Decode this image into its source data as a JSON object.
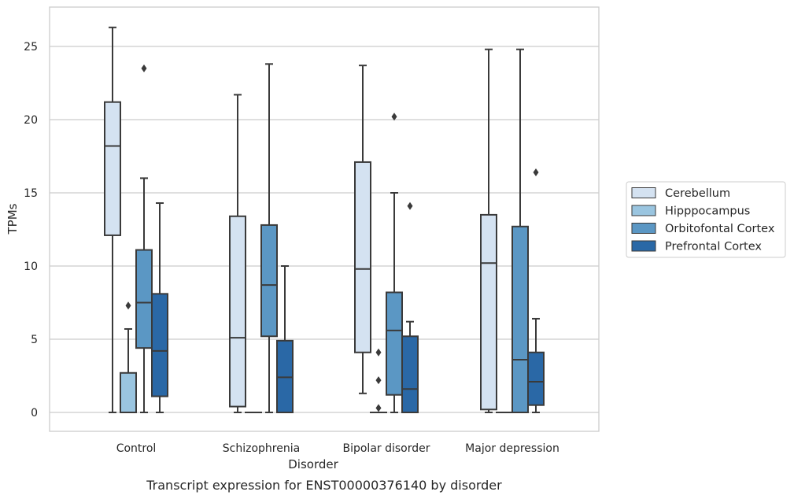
{
  "caption": "Transcript expression for ENST00000376140 by disorder",
  "chart_data": {
    "type": "box",
    "xlabel": "Disorder",
    "ylabel": "TPMs",
    "ylim": [
      -1.3,
      27.6
    ],
    "yticks": [
      0,
      5,
      10,
      15,
      20,
      25
    ],
    "grid": "horizontal",
    "legend_position": "right",
    "categories": [
      "Control",
      "Schizophrenia",
      "Bipolar disorder",
      "Major depression"
    ],
    "series": [
      {
        "name": "Cerebellum",
        "color": "#d4e2f1",
        "boxes": [
          {
            "whisker_low": 0,
            "q1": 12.1,
            "median": 18.2,
            "q3": 21.2,
            "whisker_high": 26.3,
            "outliers": []
          },
          {
            "whisker_low": 0,
            "q1": 0.4,
            "median": 5.1,
            "q3": 13.4,
            "whisker_high": 21.7,
            "outliers": []
          },
          {
            "whisker_low": 1.3,
            "q1": 4.1,
            "median": 9.8,
            "q3": 17.1,
            "whisker_high": 23.7,
            "outliers": []
          },
          {
            "whisker_low": 0,
            "q1": 0.2,
            "median": 10.2,
            "q3": 13.5,
            "whisker_high": 24.8,
            "outliers": []
          }
        ]
      },
      {
        "name": "Hipppocampus",
        "color": "#9ac5e0",
        "boxes": [
          {
            "whisker_low": 0,
            "q1": 0,
            "median": 0,
            "q3": 2.7,
            "whisker_high": 5.7,
            "outliers": [
              7.3
            ]
          },
          {
            "whisker_low": 0,
            "q1": 0,
            "median": 0,
            "q3": 0,
            "whisker_high": 0,
            "outliers": []
          },
          {
            "whisker_low": 0,
            "q1": 0,
            "median": 0,
            "q3": 0,
            "whisker_high": 0,
            "outliers": [
              4.1,
              2.2,
              0.3
            ]
          },
          {
            "whisker_low": 0,
            "q1": 0,
            "median": 0,
            "q3": 0,
            "whisker_high": 0,
            "outliers": []
          }
        ]
      },
      {
        "name": "Orbitofontal Cortex",
        "color": "#5b97c4",
        "boxes": [
          {
            "whisker_low": 0,
            "q1": 4.4,
            "median": 7.5,
            "q3": 11.1,
            "whisker_high": 16.0,
            "outliers": [
              23.5
            ]
          },
          {
            "whisker_low": 0,
            "q1": 5.2,
            "median": 8.7,
            "q3": 12.8,
            "whisker_high": 23.8,
            "outliers": []
          },
          {
            "whisker_low": 0,
            "q1": 1.2,
            "median": 5.6,
            "q3": 8.2,
            "whisker_high": 15.0,
            "outliers": [
              20.2
            ]
          },
          {
            "whisker_low": 0,
            "q1": 0,
            "median": 3.6,
            "q3": 12.7,
            "whisker_high": 24.8,
            "outliers": []
          }
        ]
      },
      {
        "name": "Prefrontal Cortex",
        "color": "#2a68a6",
        "boxes": [
          {
            "whisker_low": 0,
            "q1": 1.1,
            "median": 4.2,
            "q3": 8.1,
            "whisker_high": 14.3,
            "outliers": []
          },
          {
            "whisker_low": 0,
            "q1": 0,
            "median": 2.4,
            "q3": 4.9,
            "whisker_high": 10.0,
            "outliers": []
          },
          {
            "whisker_low": 0,
            "q1": 0,
            "median": 1.6,
            "q3": 5.2,
            "whisker_high": 6.2,
            "outliers": [
              14.1
            ]
          },
          {
            "whisker_low": 0,
            "q1": 0.5,
            "median": 2.1,
            "q3": 4.1,
            "whisker_high": 6.4,
            "outliers": [
              16.4
            ]
          }
        ]
      }
    ]
  }
}
